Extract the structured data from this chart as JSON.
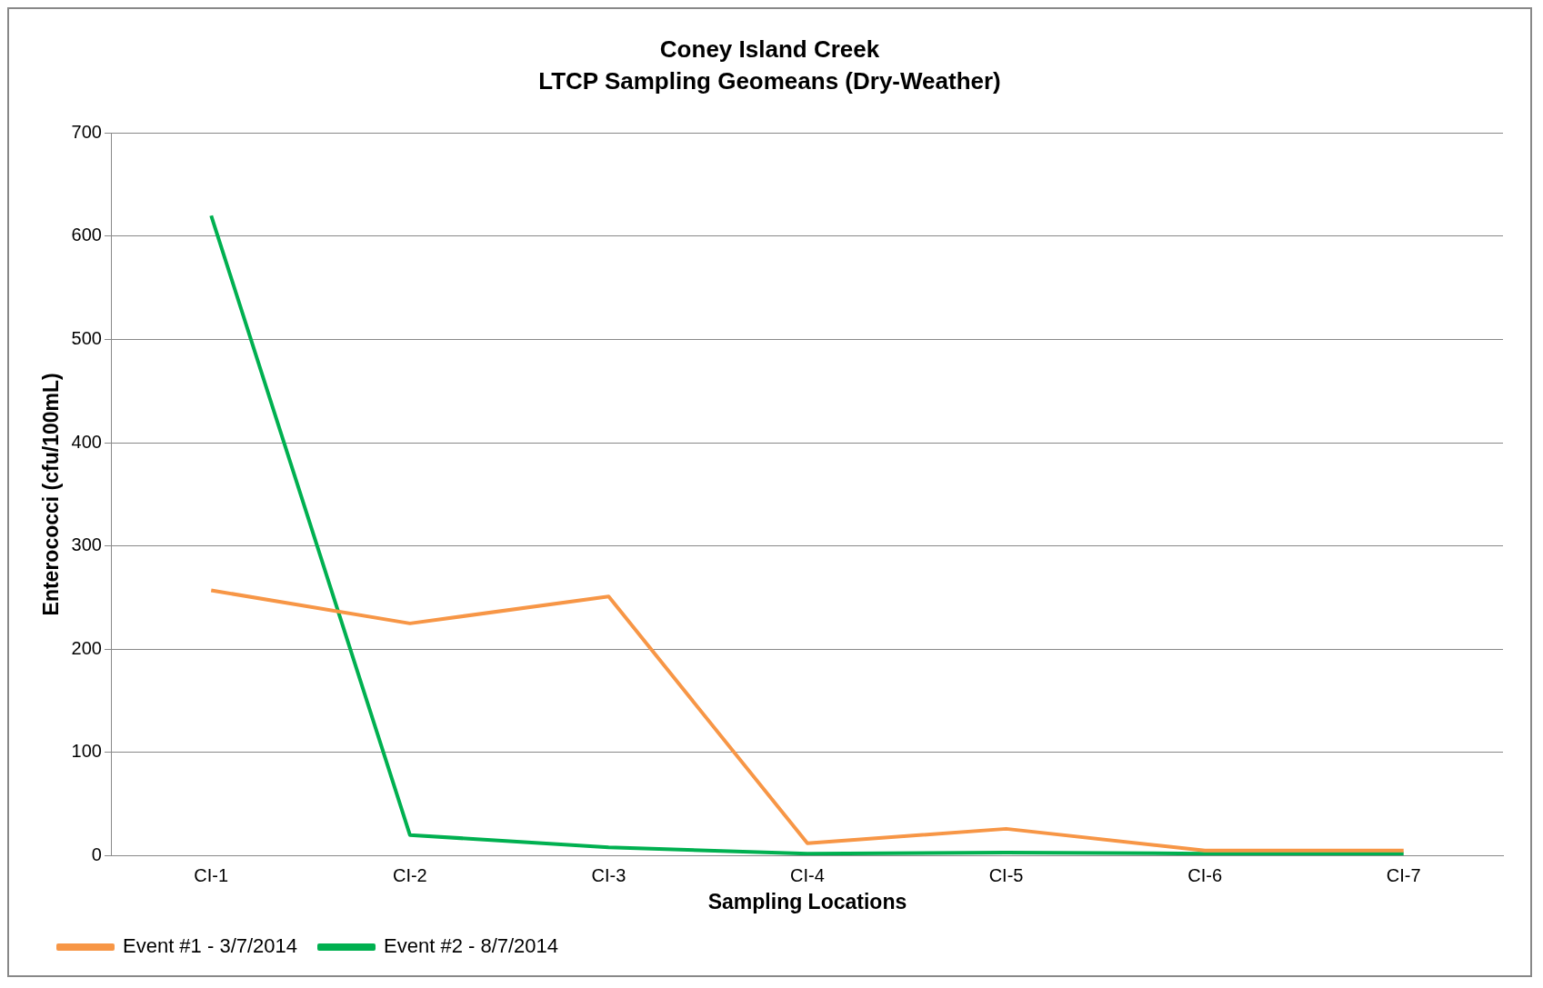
{
  "chart_data": {
    "type": "line",
    "title": "Coney Island Creek",
    "subtitle": "LTCP Sampling Geomeans (Dry-Weather)",
    "xlabel": "Sampling Locations",
    "ylabel": "Enterococci (cfu/100mL)",
    "categories": [
      "CI-1",
      "CI-2",
      "CI-3",
      "CI-4",
      "CI-5",
      "CI-6",
      "CI-7"
    ],
    "series": [
      {
        "name": "Event #1 - 3/7/2014",
        "color": "#f79646",
        "values": [
          257,
          225,
          251,
          12,
          26,
          5,
          5
        ]
      },
      {
        "name": "Event #2 - 8/7/2014",
        "color": "#00b050",
        "values": [
          620,
          20,
          8,
          2,
          3,
          2,
          2
        ]
      }
    ],
    "ylim": [
      0,
      700
    ],
    "yticks": [
      0,
      100,
      200,
      300,
      400,
      500,
      600,
      700
    ],
    "grid": "y",
    "legend": "bottom left",
    "marker": "none",
    "line_style": "solid"
  }
}
